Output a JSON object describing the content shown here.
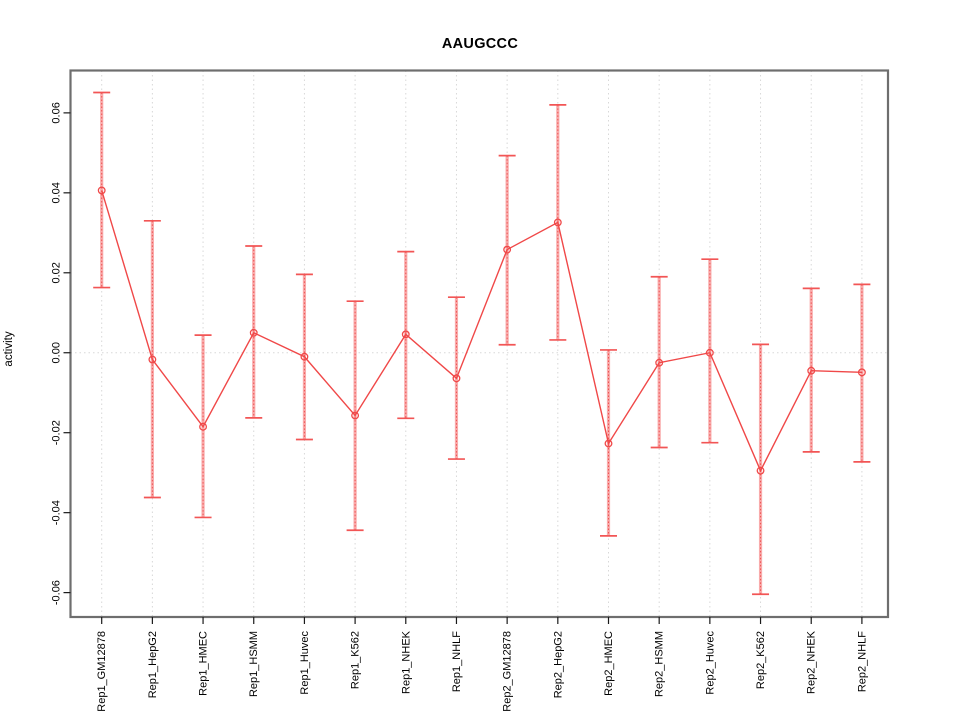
{
  "page": {
    "background": "#ffffff"
  },
  "chart_data": {
    "type": "line",
    "title": "AAUGCCC",
    "ylabel": "activity",
    "xlabel": "",
    "categories": [
      "Rep1_GM12878",
      "Rep1_HepG2",
      "Rep1_HMEC",
      "Rep1_HSMM",
      "Rep1_Huvec",
      "Rep1_K562",
      "Rep1_NHEK",
      "Rep1_NHLF",
      "Rep2_GM12878",
      "Rep2_HepG2",
      "Rep2_HMEC",
      "Rep2_HSMM",
      "Rep2_Huvec",
      "Rep2_K562",
      "Rep2_NHEK",
      "Rep2_NHLF"
    ],
    "series": [
      {
        "name": "activity",
        "values": [
          0.0406,
          -0.0017,
          -0.0185,
          0.005,
          -0.001,
          -0.0157,
          0.0046,
          -0.0064,
          0.0258,
          0.0326,
          -0.0227,
          -0.0025,
          0.0,
          -0.0295,
          -0.0045,
          -0.0049
        ],
        "err_high": [
          0.0651,
          0.033,
          0.0044,
          0.0267,
          0.0196,
          0.0129,
          0.0253,
          0.0139,
          0.0493,
          0.062,
          0.0007,
          0.019,
          0.0234,
          0.0021,
          0.0161,
          0.0171
        ],
        "err_low": [
          0.0163,
          -0.0362,
          -0.0412,
          -0.0163,
          -0.0217,
          -0.0444,
          -0.0164,
          -0.0266,
          0.002,
          0.0032,
          -0.0458,
          -0.0237,
          -0.0225,
          -0.0604,
          -0.0248,
          -0.0273
        ]
      }
    ],
    "yticks": {
      "values": [
        0.06,
        0.04,
        0.02,
        0.0,
        -0.02,
        -0.04,
        -0.06
      ],
      "labels": [
        "0.06",
        "0.04",
        "0.02",
        "0.00",
        "-0.02",
        "-0.04",
        "-0.06"
      ]
    },
    "ylim": [
      -0.0661,
      0.0706
    ],
    "grid": {
      "vertical_dotted": true,
      "zero_line_dotted": true,
      "horizontal_gridlines": false
    },
    "legend": "none",
    "marker": "open-circle",
    "colors": {
      "line": "#f04848",
      "marker_stroke": "#f04848",
      "error_bar_thick": "#f9a2a2",
      "error_bar_dash": "#ee4444",
      "error_cap": "#f25555",
      "grid": "#d8d8d8",
      "frame": "#6e6e6e",
      "tick": "#1a1a1a",
      "text": "#000000"
    }
  }
}
